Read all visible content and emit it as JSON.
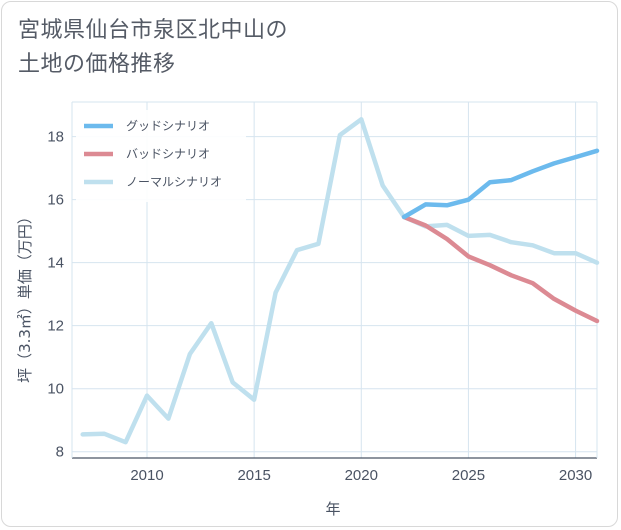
{
  "title": {
    "line1": "宮城県仙台市泉区北中山の",
    "line2": "土地の価格推移"
  },
  "colors": {
    "good": "#6cbaed",
    "bad": "#dc8a93",
    "normal": "#bfe0ee",
    "grid": "#d6e4ef",
    "axis": "#4a5363"
  },
  "chart_data": {
    "type": "line",
    "xlabel": "年",
    "ylabel": "坪（3.3㎡）単価（万円）",
    "xlim": [
      2006.5,
      2031
    ],
    "ylim": [
      7.8,
      19.1
    ],
    "xticks": [
      2010,
      2015,
      2020,
      2025,
      2030
    ],
    "yticks": [
      8,
      10,
      12,
      14,
      16,
      18
    ],
    "legend_position": "top-left",
    "series": [
      {
        "key": "good",
        "name": "グッドシナリオ",
        "x": [
          2022,
          2023,
          2024,
          2025,
          2026,
          2027,
          2028,
          2029,
          2030,
          2031
        ],
        "y": [
          15.45,
          15.85,
          15.82,
          16.0,
          16.55,
          16.62,
          16.9,
          17.15,
          17.35,
          17.55
        ]
      },
      {
        "key": "bad",
        "name": "バッドシナリオ",
        "x": [
          2022,
          2023,
          2024,
          2025,
          2026,
          2027,
          2028,
          2029,
          2030,
          2031
        ],
        "y": [
          15.45,
          15.18,
          14.75,
          14.2,
          13.92,
          13.6,
          13.35,
          12.85,
          12.48,
          12.15
        ]
      },
      {
        "key": "normal",
        "name": "ノーマルシナリオ",
        "x": [
          2007,
          2008,
          2009,
          2010,
          2011,
          2012,
          2013,
          2014,
          2015,
          2016,
          2017,
          2018,
          2019,
          2020,
          2021,
          2022,
          2023,
          2024,
          2025,
          2026,
          2027,
          2028,
          2029,
          2030,
          2031
        ],
        "y": [
          8.55,
          8.57,
          8.3,
          9.78,
          9.05,
          11.1,
          12.08,
          10.2,
          9.65,
          13.05,
          14.4,
          14.6,
          18.05,
          18.55,
          16.45,
          15.45,
          15.15,
          15.2,
          14.85,
          14.88,
          14.65,
          14.55,
          14.3,
          14.3,
          14.0
        ]
      }
    ]
  }
}
